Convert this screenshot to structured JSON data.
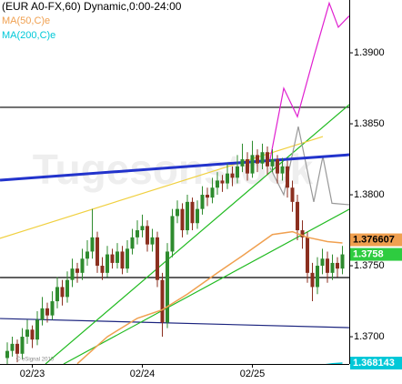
{
  "chart_data": {
    "type": "candlestick",
    "title": "(EUR A0-FX,60) Dynamic,0:00-24:00",
    "watermark": "Tugesonstock",
    "copyright": "© eSignal 2010",
    "categories": [
      null,
      null,
      null,
      null,
      null,
      "02/23",
      null,
      null,
      null,
      null,
      null,
      null,
      null,
      null,
      null,
      null,
      null,
      null,
      null,
      null,
      null,
      null,
      null,
      null,
      null,
      null,
      null,
      "02/24",
      null,
      null,
      null,
      null,
      null,
      null,
      null,
      null,
      null,
      null,
      null,
      null,
      null,
      null,
      null,
      null,
      null,
      null,
      null,
      null,
      null,
      "02/25",
      null,
      null,
      null,
      null,
      null,
      null,
      null,
      null,
      null,
      null,
      null,
      null,
      null,
      null,
      null,
      null,
      null,
      null
    ],
    "up_color": "#2e8b2e",
    "down_color": "#8b2f1f",
    "last_price_color": "#2ecc40",
    "candles": [
      [
        1.3685,
        1.3696,
        1.368,
        1.369
      ],
      [
        1.369,
        1.37,
        1.3686,
        1.3695
      ],
      [
        1.3695,
        1.3698,
        1.3682,
        1.3688
      ],
      [
        1.3688,
        1.3706,
        1.3684,
        1.37
      ],
      [
        1.37,
        1.3712,
        1.3695,
        1.3705
      ],
      [
        1.3705,
        1.3708,
        1.3692,
        1.3698
      ],
      [
        1.3698,
        1.3718,
        1.3694,
        1.3712
      ],
      [
        1.3712,
        1.3728,
        1.3708,
        1.372
      ],
      [
        1.372,
        1.3724,
        1.371,
        1.3715
      ],
      [
        1.3715,
        1.3732,
        1.3712,
        1.3725
      ],
      [
        1.3725,
        1.3742,
        1.372,
        1.3735
      ],
      [
        1.3735,
        1.374,
        1.3722,
        1.3728
      ],
      [
        1.3728,
        1.3746,
        1.3724,
        1.374
      ],
      [
        1.374,
        1.3755,
        1.3735,
        1.3748
      ],
      [
        1.3748,
        1.3752,
        1.3738,
        1.3745
      ],
      [
        1.3745,
        1.3762,
        1.374,
        1.3755
      ],
      [
        1.3755,
        1.3768,
        1.375,
        1.376
      ],
      [
        1.376,
        1.379,
        1.3755,
        1.377
      ],
      [
        1.377,
        1.3774,
        1.3745,
        1.375
      ],
      [
        1.375,
        1.3756,
        1.374,
        1.3745
      ],
      [
        1.3745,
        1.3764,
        1.3742,
        1.3758
      ],
      [
        1.3758,
        1.3762,
        1.3748,
        1.3752
      ],
      [
        1.3752,
        1.3766,
        1.3748,
        1.376
      ],
      [
        1.376,
        1.3764,
        1.3744,
        1.3748
      ],
      [
        1.3748,
        1.3768,
        1.3745,
        1.3762
      ],
      [
        1.3762,
        1.3776,
        1.3758,
        1.377
      ],
      [
        1.377,
        1.3782,
        1.3765,
        1.3775
      ],
      [
        1.3775,
        1.3786,
        1.377,
        1.3778
      ],
      [
        1.3778,
        1.3782,
        1.376,
        1.3765
      ],
      [
        1.3765,
        1.3776,
        1.376,
        1.377
      ],
      [
        1.377,
        1.3774,
        1.3735,
        1.374
      ],
      [
        1.374,
        1.3745,
        1.37,
        1.371
      ],
      [
        1.371,
        1.3766,
        1.3706,
        1.376
      ],
      [
        1.376,
        1.379,
        1.3756,
        1.3785
      ],
      [
        1.3785,
        1.3796,
        1.378,
        1.379
      ],
      [
        1.379,
        1.3794,
        1.377,
        1.3775
      ],
      [
        1.3775,
        1.38,
        1.3772,
        1.3795
      ],
      [
        1.3795,
        1.3798,
        1.3775,
        1.378
      ],
      [
        1.378,
        1.3796,
        1.3776,
        1.379
      ],
      [
        1.379,
        1.3806,
        1.3786,
        1.38
      ],
      [
        1.38,
        1.3805,
        1.3792,
        1.3798
      ],
      [
        1.3798,
        1.3812,
        1.3794,
        1.3805
      ],
      [
        1.3805,
        1.3816,
        1.38,
        1.381
      ],
      [
        1.381,
        1.3814,
        1.3802,
        1.3808
      ],
      [
        1.3808,
        1.3822,
        1.3804,
        1.3815
      ],
      [
        1.3815,
        1.382,
        1.3806,
        1.3812
      ],
      [
        1.3812,
        1.3828,
        1.3808,
        1.382
      ],
      [
        1.382,
        1.3836,
        1.3816,
        1.3825
      ],
      [
        1.3825,
        1.383,
        1.381,
        1.3815
      ],
      [
        1.3815,
        1.3838,
        1.3812,
        1.3828
      ],
      [
        1.3828,
        1.3832,
        1.3816,
        1.3822
      ],
      [
        1.3822,
        1.3836,
        1.3818,
        1.383
      ],
      [
        1.383,
        1.3834,
        1.3814,
        1.382
      ],
      [
        1.382,
        1.3832,
        1.3816,
        1.3825
      ],
      [
        1.3825,
        1.3828,
        1.3808,
        1.3815
      ],
      [
        1.3815,
        1.3826,
        1.381,
        1.382
      ],
      [
        1.382,
        1.3824,
        1.3798,
        1.3805
      ],
      [
        1.3805,
        1.381,
        1.3788,
        1.3795
      ],
      [
        1.3795,
        1.38,
        1.3768,
        1.3775
      ],
      [
        1.3775,
        1.3782,
        1.3762,
        1.377
      ],
      [
        1.377,
        1.3774,
        1.3738,
        1.3745
      ],
      [
        1.3745,
        1.3752,
        1.3725,
        1.3735
      ],
      [
        1.3735,
        1.3756,
        1.373,
        1.375
      ],
      [
        1.375,
        1.3762,
        1.3744,
        1.3755
      ],
      [
        1.3755,
        1.376,
        1.3738,
        1.3745
      ],
      [
        1.3745,
        1.3758,
        1.374,
        1.3752
      ],
      [
        1.3752,
        1.3756,
        1.3742,
        1.3748
      ],
      [
        1.3748,
        1.3764,
        1.3744,
        1.3758
      ]
    ],
    "ylim": [
      1.36808,
      1.39372
    ],
    "yticks": [
      {
        "value": 1.39,
        "label": "1.3900"
      },
      {
        "value": 1.385,
        "label": "1.3850"
      },
      {
        "value": 1.38,
        "label": "1.3800"
      },
      {
        "value": 1.375,
        "label": "1.3750"
      },
      {
        "value": 1.37,
        "label": "1.3700"
      }
    ],
    "series": [
      {
        "name": "MA(50,C)e",
        "color": "#f0a050",
        "x": [
          14,
          20,
          26,
          31,
          36,
          42,
          47,
          53,
          57,
          60,
          64,
          67
        ],
        "values": [
          1.3681,
          1.37,
          1.3713,
          1.3719,
          1.373,
          1.3745,
          1.3757,
          1.3772,
          1.3774,
          1.377,
          1.3767,
          1.376607
        ]
      },
      {
        "name": "MA(200,C)e",
        "color": "#00c8d8",
        "x": [
          63,
          65,
          67
        ],
        "values": [
          1.368,
          1.3681,
          1.368143
        ]
      }
    ],
    "trend_line": {
      "color": "#2233cc",
      "x": [
        -1.45,
        68.36
      ],
      "values": [
        1.38103,
        1.38282
      ]
    },
    "lines": [
      {
        "color": "#000000",
        "x": [
          -1.45,
          68.36
        ],
        "values": [
          1.38616,
          1.38616
        ]
      },
      {
        "color": "#000000",
        "x": [
          -1.45,
          68.36
        ],
        "values": [
          1.37417,
          1.37417
        ]
      },
      {
        "color": "#1a237e",
        "x": [
          -1.45,
          68.36
        ],
        "values": [
          1.37128,
          1.37064
        ]
      },
      {
        "color": "#22bb22",
        "x": [
          7.64,
          68.36
        ],
        "values": [
          1.36808,
          1.38635
        ]
      },
      {
        "color": "#22bb22",
        "x": [
          11.27,
          68.36
        ],
        "values": [
          1.36808,
          1.37898
        ]
      },
      {
        "color": "#f0d040",
        "x": [
          -1.45,
          63.09
        ],
        "values": [
          1.37693,
          1.3841
        ]
      },
      {
        "color": "#e020d0",
        "x": [
          52.55,
          55.27,
          58,
          61.27,
          64.36,
          66.18,
          68.36
        ],
        "values": [
          1.3825,
          1.3875,
          1.3855,
          1.3897,
          1.3935,
          1.3918,
          1.3926
        ]
      },
      {
        "color": "#999999",
        "x": [
          52.55,
          55.27,
          58.18,
          61.27,
          63.09,
          64.91,
          68.36
        ],
        "values": [
          1.3819,
          1.38,
          1.3848,
          1.3795,
          1.3827,
          1.3794,
          1.3793
        ]
      }
    ]
  }
}
